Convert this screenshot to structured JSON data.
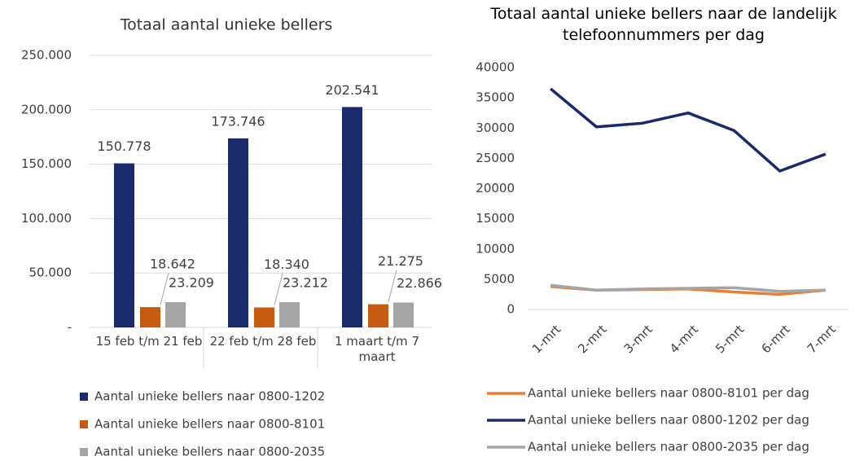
{
  "chart_data": [
    {
      "type": "bar",
      "title": "Totaal aantal unieke bellers",
      "categories": [
        "15 feb t/m 21 feb",
        "22 feb t/m 28 feb",
        "1 maart t/m 7 maart"
      ],
      "series": [
        {
          "name": "Aantal unieke bellers naar 0800-1202",
          "color": "#1b2a6b",
          "values": [
            150778,
            173746,
            202541
          ],
          "value_labels": [
            "150.778",
            "173.746",
            "202.541"
          ]
        },
        {
          "name": "Aantal unieke bellers naar 0800-8101",
          "color": "#c55a11",
          "values": [
            18642,
            18340,
            21275
          ],
          "value_labels": [
            "18.642",
            "18.340",
            "21.275"
          ]
        },
        {
          "name": "Aantal unieke bellers naar 0800-2035",
          "color": "#a5a5a5",
          "values": [
            23209,
            23212,
            22866
          ],
          "value_labels": [
            "23.209",
            "23.212",
            "22.866"
          ]
        }
      ],
      "ylim": [
        0,
        250000
      ],
      "yticks": [
        {
          "value": 0,
          "label": "-"
        },
        {
          "value": 50000,
          "label": "50.000"
        },
        {
          "value": 100000,
          "label": "100.000"
        },
        {
          "value": 150000,
          "label": "150.000"
        },
        {
          "value": 200000,
          "label": "200.000"
        },
        {
          "value": 250000,
          "label": "250.000"
        }
      ],
      "legend": "bottom"
    },
    {
      "type": "line",
      "title": "Totaal aantal unieke bellers naar de landelijk telefoonnummers per dag",
      "categories": [
        "1-mrt",
        "2-mrt",
        "3-mrt",
        "4-mrt",
        "5-mrt",
        "6-mrt",
        "7-mrt"
      ],
      "series": [
        {
          "name": "Aantal unieke bellers naar 0800-8101 per dag",
          "color": "#ed7d31",
          "values": [
            3800,
            3200,
            3300,
            3400,
            2900,
            2500,
            3200
          ]
        },
        {
          "name": "Aantal unieke bellers naar 0800-1202 per dag",
          "color": "#1b2a6b",
          "values": [
            36500,
            30200,
            30800,
            32500,
            29600,
            22900,
            25700
          ]
        },
        {
          "name": "Aantal unieke bellers naar 0800-2035 per dag",
          "color": "#a5a5a5",
          "values": [
            4000,
            3200,
            3400,
            3500,
            3600,
            3000,
            3200
          ]
        }
      ],
      "ylim": [
        0,
        40000
      ],
      "yticks": [
        0,
        5000,
        10000,
        15000,
        20000,
        25000,
        30000,
        35000,
        40000
      ],
      "legend": "bottom"
    }
  ]
}
